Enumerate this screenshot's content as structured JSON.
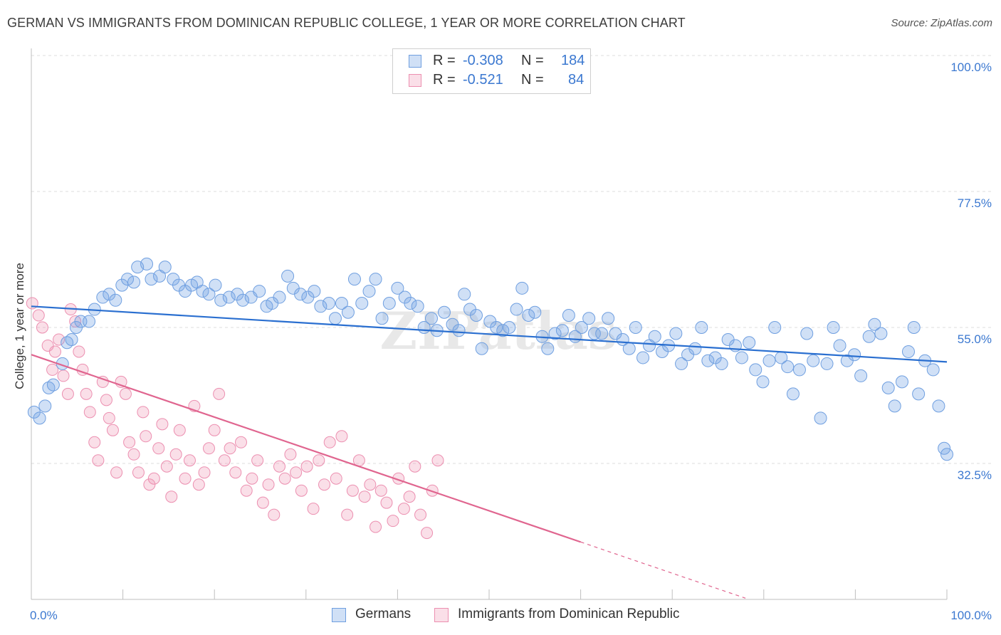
{
  "title": "GERMAN VS IMMIGRANTS FROM DOMINICAN REPUBLIC COLLEGE, 1 YEAR OR MORE CORRELATION CHART",
  "source": "Source: ZipAtlas.com",
  "watermark": "ZIPatlas",
  "colors": {
    "blue_fill": "rgba(120,165,230,0.35)",
    "blue_stroke": "#6f9fe0",
    "blue_line": "#2a6fd0",
    "pink_fill": "rgba(240,150,180,0.30)",
    "pink_stroke": "#ec8fb0",
    "pink_line": "#e0658f",
    "tick_text": "#3b78d0"
  },
  "legend": {
    "r_label": "R =",
    "n_label": "N =",
    "rows": [
      {
        "r": "-0.308",
        "n": "184"
      },
      {
        "r": "-0.521",
        "n": "84"
      }
    ]
  },
  "chart_data": {
    "type": "scatter",
    "ylabel": "College, 1 year or more",
    "xlim": [
      0,
      100
    ],
    "ylim": [
      10,
      100
    ],
    "yticks": [
      32.5,
      55.0,
      77.5,
      100.0
    ],
    "ytick_labels": [
      "32.5%",
      "55.0%",
      "77.5%",
      "100.0%"
    ],
    "xtick_labels": [
      "0.0%",
      "100.0%"
    ],
    "grid": true,
    "series": [
      {
        "name": "Germans",
        "trend": {
          "x0": 0,
          "y0": 58.5,
          "x1": 100,
          "y1": 49.3
        },
        "points": [
          [
            0.3,
            41
          ],
          [
            0.9,
            40
          ],
          [
            1.5,
            42
          ],
          [
            1.9,
            45
          ],
          [
            2.4,
            45.5
          ],
          [
            3.4,
            49
          ],
          [
            3.9,
            52.5
          ],
          [
            4.4,
            53
          ],
          [
            4.9,
            55
          ],
          [
            5.4,
            56
          ],
          [
            6.3,
            56
          ],
          [
            6.9,
            58
          ],
          [
            7.8,
            60
          ],
          [
            8.5,
            60.5
          ],
          [
            9.2,
            59.5
          ],
          [
            9.9,
            62
          ],
          [
            10.5,
            63
          ],
          [
            11.2,
            62.5
          ],
          [
            11.6,
            65
          ],
          [
            12.6,
            65.5
          ],
          [
            13.1,
            63
          ],
          [
            14.0,
            63.5
          ],
          [
            14.6,
            65
          ],
          [
            15.5,
            63
          ],
          [
            16.1,
            62
          ],
          [
            16.8,
            61
          ],
          [
            17.5,
            62
          ],
          [
            18.1,
            62.5
          ],
          [
            18.7,
            61
          ],
          [
            19.4,
            60.5
          ],
          [
            20.1,
            62
          ],
          [
            20.7,
            59.5
          ],
          [
            21.6,
            60
          ],
          [
            22.5,
            60.5
          ],
          [
            23.1,
            59.5
          ],
          [
            24.0,
            60
          ],
          [
            24.9,
            61
          ],
          [
            25.7,
            58.5
          ],
          [
            26.3,
            59
          ],
          [
            27.1,
            60
          ],
          [
            28.0,
            63.5
          ],
          [
            28.6,
            61.5
          ],
          [
            29.4,
            60.5
          ],
          [
            30.2,
            60
          ],
          [
            30.9,
            61
          ],
          [
            31.6,
            58.5
          ],
          [
            32.5,
            59
          ],
          [
            33.2,
            56.5
          ],
          [
            33.9,
            59
          ],
          [
            34.6,
            57.5
          ],
          [
            35.3,
            63
          ],
          [
            36.1,
            59
          ],
          [
            36.9,
            61
          ],
          [
            37.6,
            63
          ],
          [
            38.3,
            56.5
          ],
          [
            39.1,
            59
          ],
          [
            40.0,
            61.5
          ],
          [
            40.8,
            60
          ],
          [
            41.4,
            59
          ],
          [
            42.2,
            58.5
          ],
          [
            42.9,
            55
          ],
          [
            43.7,
            56.5
          ],
          [
            44.3,
            54.5
          ],
          [
            45.1,
            57.5
          ],
          [
            46.0,
            55.5
          ],
          [
            46.7,
            54.5
          ],
          [
            47.3,
            60.5
          ],
          [
            47.9,
            58
          ],
          [
            48.6,
            57
          ],
          [
            49.2,
            51.5
          ],
          [
            50.1,
            56
          ],
          [
            50.8,
            55
          ],
          [
            51.5,
            54.5
          ],
          [
            52.2,
            55
          ],
          [
            53.0,
            58
          ],
          [
            53.6,
            61.5
          ],
          [
            54.3,
            57
          ],
          [
            55.0,
            57.5
          ],
          [
            55.8,
            53.5
          ],
          [
            56.4,
            51.5
          ],
          [
            57.2,
            54
          ],
          [
            58.0,
            54.5
          ],
          [
            58.7,
            57
          ],
          [
            59.4,
            53.5
          ],
          [
            60.1,
            55
          ],
          [
            60.9,
            56.5
          ],
          [
            61.5,
            54
          ],
          [
            62.3,
            54
          ],
          [
            63.0,
            56.5
          ],
          [
            63.8,
            54
          ],
          [
            64.6,
            53
          ],
          [
            65.3,
            51.5
          ],
          [
            66.0,
            55
          ],
          [
            66.8,
            50
          ],
          [
            67.5,
            52
          ],
          [
            68.1,
            53.5
          ],
          [
            68.9,
            51
          ],
          [
            69.6,
            52
          ],
          [
            70.4,
            54
          ],
          [
            71.0,
            49
          ],
          [
            71.7,
            50.5
          ],
          [
            72.5,
            51.5
          ],
          [
            73.2,
            55
          ],
          [
            73.9,
            49.5
          ],
          [
            74.7,
            50
          ],
          [
            75.4,
            49
          ],
          [
            76.1,
            53
          ],
          [
            76.9,
            52
          ],
          [
            77.6,
            50
          ],
          [
            78.4,
            52.5
          ],
          [
            79.1,
            48
          ],
          [
            79.9,
            46
          ],
          [
            80.6,
            49.5
          ],
          [
            81.2,
            55
          ],
          [
            81.9,
            50
          ],
          [
            82.6,
            48.5
          ],
          [
            83.2,
            44
          ],
          [
            83.9,
            48
          ],
          [
            84.7,
            54
          ],
          [
            85.4,
            49.5
          ],
          [
            86.2,
            40
          ],
          [
            86.9,
            49
          ],
          [
            87.6,
            55
          ],
          [
            88.3,
            52
          ],
          [
            89.1,
            49.5
          ],
          [
            89.9,
            50.5
          ],
          [
            90.6,
            47
          ],
          [
            91.5,
            53.5
          ],
          [
            92.1,
            55.5
          ],
          [
            92.8,
            54
          ],
          [
            93.6,
            45
          ],
          [
            94.3,
            42
          ],
          [
            95.1,
            46
          ],
          [
            95.8,
            51
          ],
          [
            96.4,
            55
          ],
          [
            96.9,
            44
          ],
          [
            97.6,
            49.5
          ],
          [
            98.5,
            48
          ],
          [
            99.1,
            42
          ],
          [
            99.7,
            35
          ],
          [
            100,
            34
          ]
        ]
      },
      {
        "name": "Immigrants from Dominican Republic",
        "trend": {
          "x0": 0,
          "y0": 50.5,
          "x1": 60,
          "y1": 19.5
        },
        "points": [
          [
            0.1,
            59
          ],
          [
            0.8,
            57
          ],
          [
            1.2,
            55
          ],
          [
            1.8,
            52
          ],
          [
            2.3,
            48
          ],
          [
            2.6,
            51
          ],
          [
            3.0,
            53
          ],
          [
            3.5,
            47
          ],
          [
            4.0,
            44
          ],
          [
            4.3,
            58
          ],
          [
            4.8,
            56
          ],
          [
            5.2,
            51
          ],
          [
            5.6,
            48
          ],
          [
            6.0,
            44
          ],
          [
            6.4,
            41
          ],
          [
            6.9,
            36
          ],
          [
            7.3,
            33
          ],
          [
            7.8,
            46
          ],
          [
            8.2,
            43
          ],
          [
            8.5,
            40
          ],
          [
            8.9,
            38
          ],
          [
            9.3,
            31
          ],
          [
            9.8,
            46
          ],
          [
            10.3,
            44
          ],
          [
            10.7,
            36
          ],
          [
            11.2,
            34
          ],
          [
            11.7,
            31
          ],
          [
            12.2,
            41
          ],
          [
            12.5,
            37
          ],
          [
            12.9,
            29
          ],
          [
            13.4,
            30
          ],
          [
            13.9,
            35
          ],
          [
            14.3,
            39
          ],
          [
            14.8,
            32
          ],
          [
            15.3,
            27
          ],
          [
            15.8,
            34
          ],
          [
            16.2,
            38
          ],
          [
            16.8,
            30
          ],
          [
            17.3,
            33
          ],
          [
            17.8,
            42
          ],
          [
            18.3,
            29
          ],
          [
            18.9,
            31
          ],
          [
            19.4,
            35
          ],
          [
            20.0,
            38
          ],
          [
            20.5,
            44
          ],
          [
            21.1,
            33
          ],
          [
            21.7,
            35
          ],
          [
            22.3,
            31
          ],
          [
            22.9,
            36
          ],
          [
            23.5,
            28
          ],
          [
            24.1,
            30
          ],
          [
            24.7,
            33
          ],
          [
            25.3,
            26
          ],
          [
            25.9,
            29
          ],
          [
            26.5,
            24
          ],
          [
            27.1,
            32
          ],
          [
            27.7,
            30
          ],
          [
            28.3,
            34
          ],
          [
            28.9,
            31
          ],
          [
            29.5,
            28
          ],
          [
            30.1,
            32
          ],
          [
            30.8,
            25
          ],
          [
            31.4,
            33
          ],
          [
            32.0,
            29
          ],
          [
            32.6,
            36
          ],
          [
            33.3,
            30
          ],
          [
            33.9,
            37
          ],
          [
            34.5,
            24
          ],
          [
            35.1,
            28
          ],
          [
            35.8,
            33
          ],
          [
            36.4,
            27
          ],
          [
            37.0,
            29
          ],
          [
            37.6,
            22
          ],
          [
            38.2,
            28
          ],
          [
            38.8,
            26
          ],
          [
            39.5,
            23
          ],
          [
            40.1,
            30
          ],
          [
            40.7,
            25
          ],
          [
            41.3,
            27
          ],
          [
            41.9,
            32
          ],
          [
            42.5,
            24
          ],
          [
            43.2,
            21
          ],
          [
            43.8,
            28
          ],
          [
            44.4,
            33
          ]
        ]
      }
    ]
  },
  "bottom_legend": [
    "Germans",
    "Immigrants from Dominican Republic"
  ]
}
